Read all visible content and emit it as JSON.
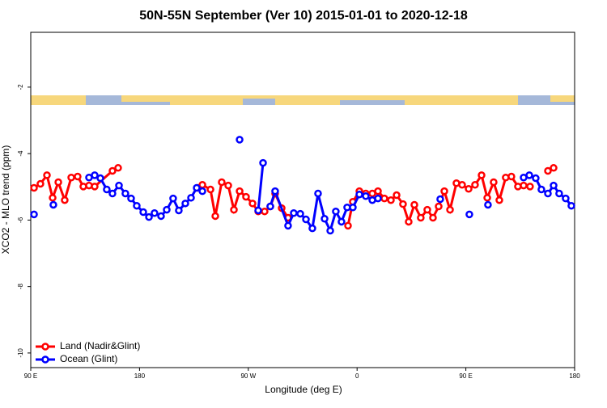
{
  "chart_data": {
    "type": "line",
    "title": "50N-55N September (Ver 10)   2015-01-01 to 2020-12-18",
    "x_label": "Longitude (deg E)",
    "y_label": "XCO2 - MLO trend (ppm)",
    "xlim": [
      90,
      540
    ],
    "xticks": [
      {
        "value": 90,
        "label": "90 E"
      },
      180,
      {
        "value": 270,
        "label": "90 W"
      },
      {
        "value": 360,
        "label": "0"
      },
      {
        "value": 450,
        "label": "90 E"
      },
      {
        "value": 540,
        "label": "180"
      }
    ],
    "ylim": [
      -10.44,
      -0.35
    ],
    "yticks": [
      -2,
      -4,
      -6,
      -8,
      -10
    ],
    "legend": "bottom-left",
    "series": [
      {
        "name": "Land (Nadir&Glint)",
        "color": "#ff0000",
        "x": [
          92.7,
          98,
          103.4,
          108.1,
          112.8,
          118.1,
          123.5,
          128.8,
          133.5,
          138.2,
          142.9,
          157.6,
          162.3,
          200,
          227.9,
          232,
          238.7,
          242.7,
          248,
          253.4,
          258.1,
          262.8,
          268.1,
          273.5,
          278.2,
          283.5,
          288.2,
          292.2,
          297.6,
          302.9,
          330,
          352.5,
          356.5,
          361.9,
          367.2,
          372.6,
          377.3,
          382.6,
          388,
          392.7,
          398,
          402.7,
          407.4,
          412.7,
          418.1,
          422.8,
          427.5,
          432.2,
          436.9,
          442.2,
          446.9,
          452.3,
          457.6,
          463,
          467.7,
          473,
          477.7,
          483,
          487.7,
          493.1,
          497.8,
          503.1,
          510,
          517.9,
          522.6
        ],
        "values": [
          -5.03,
          -4.91,
          -4.65,
          -5.33,
          -4.86,
          -5.4,
          -4.72,
          -4.69,
          -4.99,
          -4.96,
          -4.99,
          -4.52,
          -4.43,
          null,
          -5.03,
          -4.94,
          -5.08,
          -5.88,
          -4.86,
          -4.96,
          -5.69,
          -5.13,
          -5.3,
          -5.5,
          -5.74,
          -5.74,
          -5.59,
          -5.2,
          -5.64,
          -5.93,
          null,
          -6.17,
          -5.45,
          -5.13,
          -5.2,
          -5.2,
          -5.13,
          -5.35,
          -5.4,
          -5.25,
          -5.52,
          -6.05,
          -5.54,
          -5.93,
          -5.69,
          -5.93,
          -5.59,
          -5.13,
          -5.69,
          -4.89,
          -4.94,
          -5.06,
          -4.94,
          -4.65,
          -5.33,
          -4.86,
          -5.4,
          -4.72,
          -4.69,
          -4.99,
          -4.96,
          -4.99,
          null,
          -4.52,
          -4.43
        ]
      },
      {
        "name": "Ocean (Glint)",
        "color": "#0000ff",
        "x": [
          92.7,
          100,
          108.7,
          125,
          138.2,
          142.9,
          147.6,
          152.9,
          157.6,
          163,
          168.3,
          173,
          177.7,
          183.1,
          187.8,
          192.4,
          197.8,
          202.5,
          207.8,
          212.5,
          217.9,
          222.6,
          227.3,
          232,
          250,
          262.8,
          270,
          278.2,
          282.2,
          285,
          288.2,
          292.2,
          302.9,
          307.6,
          313,
          317.7,
          323,
          327.7,
          333.1,
          337.8,
          342.4,
          347.1,
          351.8,
          356.5,
          361.9,
          367.2,
          372.6,
          377.3,
          400,
          428.8,
          440,
          452.9,
          460,
          468.3,
          480,
          497.8,
          502.5,
          507.8,
          512.5,
          517.9,
          522.6,
          527.2,
          532.6,
          537.3
        ],
        "values": [
          -5.83,
          null,
          -5.54,
          null,
          -4.72,
          -4.65,
          -4.74,
          -5.08,
          -5.2,
          -4.96,
          -5.2,
          -5.35,
          -5.57,
          -5.76,
          -5.91,
          -5.79,
          -5.88,
          -5.69,
          -5.35,
          -5.71,
          -5.5,
          -5.33,
          -5.03,
          -5.13,
          null,
          -3.58,
          null,
          -5.71,
          -4.28,
          null,
          -5.59,
          -5.13,
          -6.17,
          -5.79,
          -5.81,
          -5.98,
          -6.25,
          -5.2,
          -5.96,
          -6.32,
          -5.74,
          -6.05,
          -5.62,
          -5.62,
          -5.23,
          -5.28,
          -5.4,
          -5.35,
          null,
          -5.37,
          null,
          -5.83,
          null,
          -5.54,
          null,
          -4.72,
          -4.65,
          -4.74,
          -5.08,
          -5.2,
          -4.96,
          -5.2,
          -5.35,
          -5.57
        ]
      }
    ]
  }
}
